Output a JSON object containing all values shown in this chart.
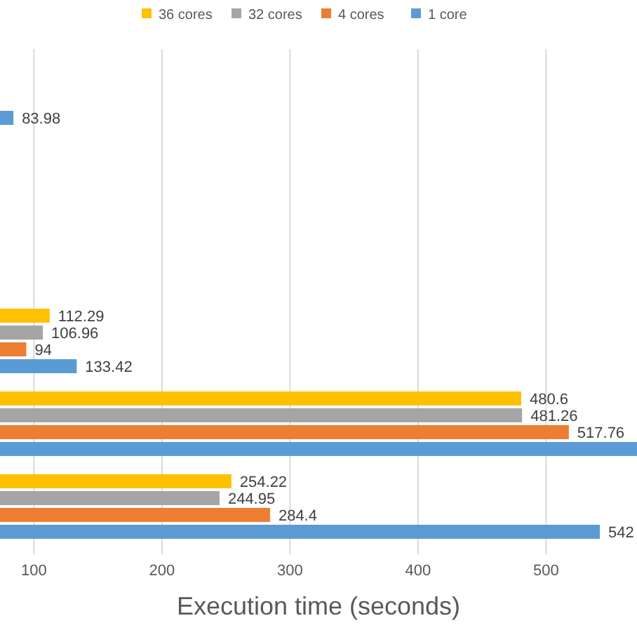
{
  "chart_data": {
    "type": "bar",
    "orientation": "horizontal",
    "xlabel": "Execution time (seconds)",
    "categories": [
      null,
      null,
      null,
      null,
      null,
      null
    ],
    "series": [
      {
        "name": "36 cores",
        "color": "#ffc000",
        "values": [
          null,
          null,
          null,
          112.29,
          480.6,
          254.22
        ],
        "value_labels": [
          null,
          null,
          null,
          "112.29",
          "480.6",
          "254.22"
        ]
      },
      {
        "name": "32 cores",
        "color": "#a5a5a5",
        "values": [
          null,
          null,
          null,
          106.96,
          481.26,
          244.95
        ],
        "value_labels": [
          null,
          null,
          null,
          "106.96",
          "481.26",
          "244.95"
        ]
      },
      {
        "name": "4 cores",
        "color": "#ed7d31",
        "values": [
          null,
          null,
          null,
          94,
          517.76,
          284.4
        ],
        "value_labels": [
          null,
          null,
          null,
          "94",
          "517.76",
          "284.4"
        ]
      },
      {
        "name": "1 core",
        "color": "#5b9bd5",
        "values": [
          83.98,
          null,
          null,
          133.42,
          571,
          542
        ],
        "value_labels": [
          "83.98",
          null,
          null,
          "133.42",
          null,
          "542"
        ]
      }
    ],
    "xlim": [
      73.5,
      571
    ],
    "xticks": [
      100,
      200,
      300,
      400,
      500
    ],
    "grid": "x",
    "legend": "top",
    "tick_labels": "x"
  }
}
